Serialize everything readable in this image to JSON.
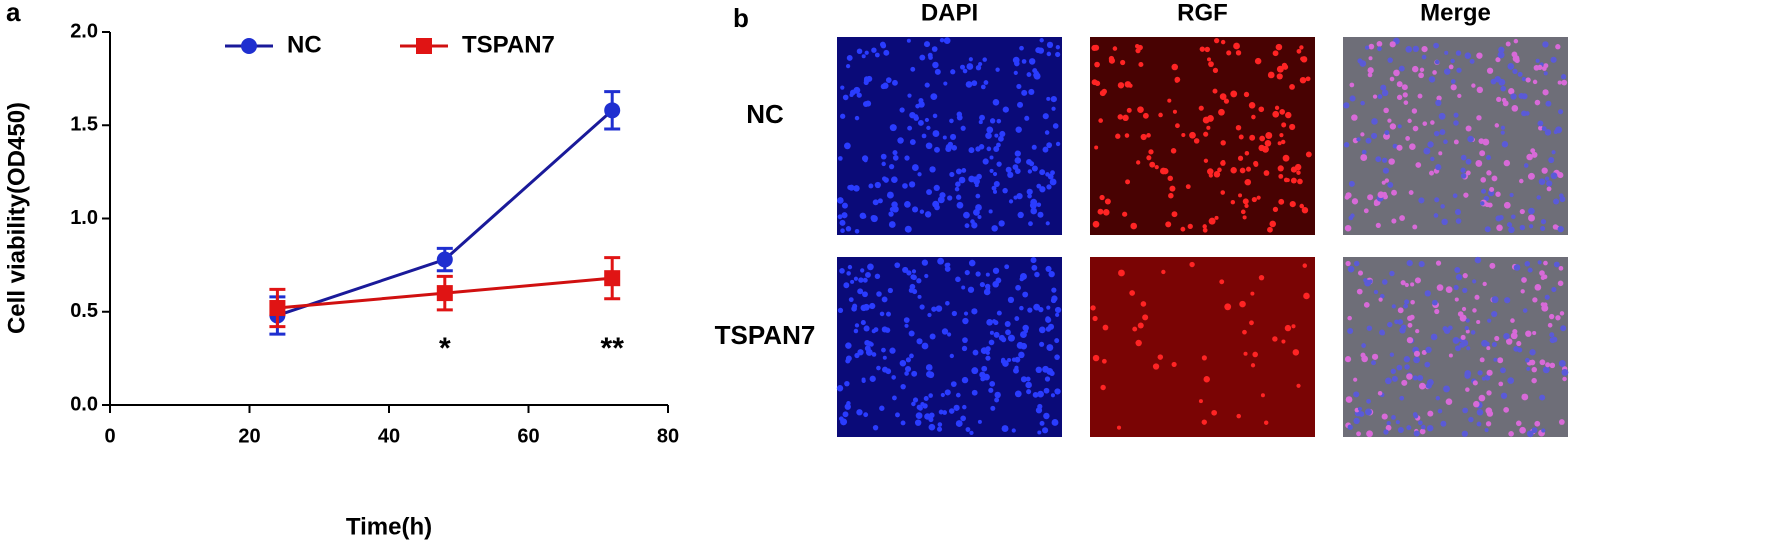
{
  "chart_data": {
    "type": "line",
    "panel_label": "a",
    "xlabel": "Time(h)",
    "ylabel": "Cell viability(OD450)",
    "x": [
      24,
      48,
      72
    ],
    "series": [
      {
        "name": "NC",
        "color": "#1f2fd0",
        "line_color": "#1a1a9a",
        "marker": "circle",
        "values": [
          0.48,
          0.78,
          1.58
        ],
        "error": [
          0.1,
          0.06,
          0.1
        ]
      },
      {
        "name": "TSPAN7",
        "color": "#e01414",
        "line_color": "#d01010",
        "marker": "square",
        "values": [
          0.52,
          0.6,
          0.68
        ],
        "error": [
          0.1,
          0.09,
          0.11
        ]
      }
    ],
    "annotations": [
      {
        "x": 48,
        "text": "*"
      },
      {
        "x": 72,
        "text": "**"
      }
    ],
    "xlim": [
      0,
      80
    ],
    "xticks": [
      0,
      20,
      40,
      60,
      80
    ],
    "ylim": [
      0,
      2
    ],
    "yticks": [
      {
        "value": 0,
        "label": "0.0"
      },
      0.5,
      {
        "value": 1,
        "label": "1.0"
      },
      1.5,
      {
        "value": 2,
        "label": "2.0"
      }
    ],
    "legend": "upper center",
    "grid": false
  },
  "panel_b": {
    "panel_label": "b",
    "columns": [
      "DAPI",
      "RGF",
      "Merge"
    ],
    "rows": [
      "NC",
      "TSPAN7"
    ]
  }
}
